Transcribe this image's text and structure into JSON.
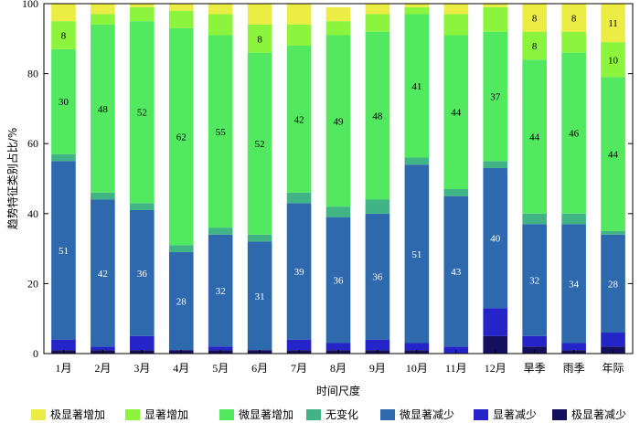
{
  "chart_data": {
    "type": "bar",
    "stacked": true,
    "xlabel": "时间尺度",
    "ylabel": "趋势特征类别占比/%",
    "ylim": [
      0,
      100
    ],
    "yticks": [
      0,
      20,
      40,
      60,
      80,
      100
    ],
    "grid": false,
    "legend_position": "bottom",
    "categories": [
      "1月",
      "2月",
      "3月",
      "4月",
      "5月",
      "6月",
      "7月",
      "8月",
      "9月",
      "10月",
      "11月",
      "12月",
      "旱季",
      "雨季",
      "年际"
    ],
    "series": [
      {
        "name": "极显著减少",
        "color": "#15105e",
        "values": [
          1,
          1,
          1,
          1,
          1,
          1,
          1,
          1,
          1,
          1,
          0,
          5,
          2,
          1,
          2
        ],
        "labels": [
          "",
          "",
          "",
          "",
          "",
          "",
          "",
          "",
          "",
          "",
          "",
          "",
          "",
          "",
          ""
        ]
      },
      {
        "name": "显著减少",
        "color": "#2424c8",
        "values": [
          3,
          1,
          4,
          0,
          1,
          0,
          3,
          2,
          3,
          2,
          2,
          8,
          3,
          2,
          4
        ],
        "labels": [
          "",
          "",
          "",
          "",
          "",
          "",
          "",
          "",
          "",
          "",
          "",
          "",
          "",
          "",
          ""
        ]
      },
      {
        "name": "微显著减少",
        "color": "#2e69ae",
        "values": [
          51,
          42,
          36,
          28,
          32,
          31,
          39,
          36,
          36,
          51,
          43,
          40,
          32,
          34,
          28
        ],
        "labels": [
          "51",
          "42",
          "36",
          "28",
          "32",
          "31",
          "39",
          "36",
          "36",
          "51",
          "43",
          "40",
          "32",
          "34",
          "28"
        ]
      },
      {
        "name": "无变化",
        "color": "#40b484",
        "values": [
          2,
          2,
          2,
          2,
          2,
          2,
          3,
          3,
          4,
          2,
          2,
          2,
          3,
          3,
          1
        ],
        "labels": [
          "",
          "",
          "",
          "",
          "",
          "",
          "",
          "",
          "",
          "",
          "",
          "",
          "",
          "",
          ""
        ]
      },
      {
        "name": "微显著增加",
        "color": "#52e860",
        "values": [
          30,
          48,
          52,
          62,
          55,
          52,
          42,
          49,
          48,
          41,
          44,
          37,
          44,
          46,
          44
        ],
        "labels": [
          "30",
          "48",
          "52",
          "62",
          "55",
          "52",
          "42",
          "49",
          "48",
          "41",
          "44",
          "37",
          "44",
          "46",
          "44"
        ]
      },
      {
        "name": "显著增加",
        "color": "#8cf43c",
        "values": [
          8,
          3,
          4,
          5,
          6,
          8,
          6,
          4,
          5,
          2,
          6,
          7,
          8,
          6,
          10
        ],
        "labels": [
          "8",
          "",
          "",
          "",
          "",
          "8",
          "",
          "",
          "",
          "",
          "",
          "",
          "8",
          "",
          "10"
        ]
      },
      {
        "name": "极显著增加",
        "color": "#eced44",
        "values": [
          5,
          3,
          1,
          2,
          3,
          6,
          6,
          4,
          3,
          1,
          3,
          1,
          8,
          8,
          11
        ],
        "labels": [
          "",
          "",
          "",
          "",
          "",
          "",
          "",
          "",
          "",
          "",
          "",
          "",
          "8",
          "8",
          "11"
        ]
      }
    ],
    "legend_order": [
      "极显著增加",
      "显著增加",
      "微显著增加",
      "无变化",
      "微显著减少",
      "显著减少",
      "极显著减少"
    ]
  }
}
